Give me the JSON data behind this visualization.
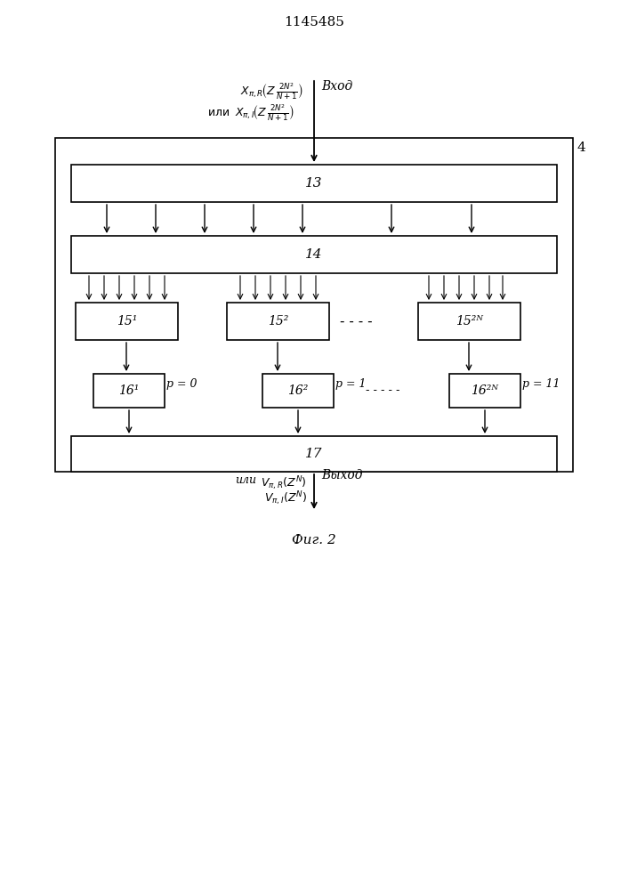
{
  "title": "1145485",
  "fig_caption": "Фиг. 2",
  "box4_label": "4",
  "block13_label": "13",
  "block14_label": "14",
  "block15_labels": [
    "15¹",
    "15²",
    "15²ᴺ"
  ],
  "block16_labels": [
    "16¹",
    "16²",
    "16²ᴺ"
  ],
  "p_labels": [
    "p = 0",
    "p = 1",
    "p = 11"
  ],
  "block17_label": "17",
  "input_label": "Вход",
  "output_label": "Выход",
  "output_signal_prefix": "или"
}
